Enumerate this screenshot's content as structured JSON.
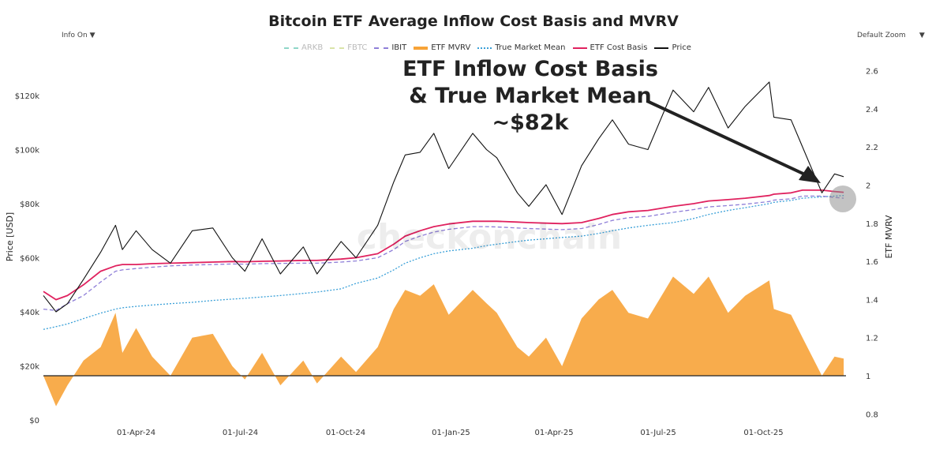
{
  "title": "Bitcoin ETF Average Inflow Cost Basis and MVRV",
  "controls": {
    "info": "Info On",
    "zoom": "Default Zoom",
    "dropdown_icon": "triangle-down"
  },
  "annotation": {
    "lines": [
      "ETF Inflow Cost Basis",
      "& True Market Mean",
      "~$82k"
    ]
  },
  "watermark": "checkonchain",
  "colors": {
    "price": "#111111",
    "cost_basis": "#e0225f",
    "true_market_mean": "#3aa0d8",
    "ibit": "#8f7fd8",
    "mvrv": "#f7a338",
    "arkb": "#8fd6c8",
    "fbtc": "#d9e3a8"
  },
  "chart_data": {
    "type": "line",
    "title": "Bitcoin ETF Average Inflow Cost Basis and MVRV",
    "ylabel": "Price [USD]",
    "y2label": "ETF MVRV",
    "ylim": [
      0,
      130000
    ],
    "y2lim": [
      0.75,
      2.65
    ],
    "yticks": [
      "$0",
      "$20k",
      "$40k",
      "$60k",
      "$80k",
      "$100k",
      "$120k"
    ],
    "yticks_values": [
      0,
      20000,
      40000,
      60000,
      80000,
      100000,
      120000
    ],
    "y2ticks": [
      "0.8",
      "1",
      "1.2",
      "1.4",
      "1.6",
      "1.8",
      "2",
      "2.2",
      "2.4",
      "2.6"
    ],
    "xticks": [
      "01-Apr-24",
      "01-Jul-24",
      "01-Oct-24",
      "01-Jan-25",
      "01-Apr-25",
      "01-Jul-25",
      "01-Oct-25"
    ],
    "xticks_dates": [
      "2024-04-01",
      "2024-07-01",
      "2024-10-01",
      "2025-01-01",
      "2025-04-01",
      "2025-07-01",
      "2025-10-01"
    ],
    "xlim": [
      "2024-01-11",
      "2025-12-12"
    ],
    "grid": false,
    "legend_position": "top",
    "legend": [
      {
        "name": "ARKB",
        "style": "dashed",
        "hidden": true
      },
      {
        "name": "FBTC",
        "style": "dashed",
        "hidden": true
      },
      {
        "name": "IBIT",
        "style": "dashed"
      },
      {
        "name": "ETF MVRV",
        "style": "area"
      },
      {
        "name": "True Market Mean",
        "style": "dotted"
      },
      {
        "name": "ETF Cost Basis",
        "style": "solid"
      },
      {
        "name": "Price",
        "style": "solid"
      }
    ],
    "dates": [
      "2024-01-11",
      "2024-01-22",
      "2024-02-01",
      "2024-02-15",
      "2024-03-01",
      "2024-03-14",
      "2024-03-20",
      "2024-04-01",
      "2024-04-15",
      "2024-05-01",
      "2024-05-20",
      "2024-06-07",
      "2024-06-24",
      "2024-07-05",
      "2024-07-20",
      "2024-08-05",
      "2024-08-25",
      "2024-09-06",
      "2024-09-27",
      "2024-10-10",
      "2024-10-29",
      "2024-11-12",
      "2024-11-22",
      "2024-12-05",
      "2024-12-17",
      "2024-12-30",
      "2025-01-20",
      "2025-02-01",
      "2025-02-10",
      "2025-02-28",
      "2025-03-10",
      "2025-03-25",
      "2025-04-08",
      "2025-04-25",
      "2025-05-10",
      "2025-05-22",
      "2025-06-05",
      "2025-06-22",
      "2025-07-14",
      "2025-08-01",
      "2025-08-14",
      "2025-08-31",
      "2025-09-15",
      "2025-10-06",
      "2025-10-10",
      "2025-10-25",
      "2025-11-04",
      "2025-11-21",
      "2025-12-02",
      "2025-12-10"
    ],
    "series": [
      {
        "name": "Price",
        "axis": "left",
        "values": [
          46000,
          40000,
          43000,
          52000,
          62000,
          72000,
          63000,
          70000,
          63000,
          58000,
          70000,
          71000,
          60000,
          55000,
          67000,
          54000,
          64000,
          54000,
          66000,
          60000,
          72000,
          88000,
          98000,
          99000,
          106000,
          93000,
          106000,
          100000,
          97000,
          84000,
          79000,
          87000,
          76000,
          94000,
          104000,
          111000,
          102000,
          100000,
          122000,
          114000,
          123000,
          108000,
          116000,
          125000,
          112000,
          111000,
          101000,
          84000,
          91000,
          90000
        ]
      },
      {
        "name": "ETF Cost Basis",
        "axis": "left",
        "values": [
          47500,
          44500,
          46000,
          50000,
          55000,
          57000,
          57500,
          57500,
          57800,
          58000,
          58200,
          58400,
          58600,
          58500,
          58700,
          58800,
          59000,
          59000,
          59500,
          60000,
          61500,
          65000,
          68000,
          70000,
          71500,
          72500,
          73500,
          73500,
          73500,
          73200,
          73000,
          72800,
          72600,
          73000,
          74500,
          76000,
          77000,
          77500,
          79000,
          80000,
          81000,
          81500,
          82000,
          83000,
          83500,
          84000,
          85000,
          85000,
          84500,
          84200
        ]
      },
      {
        "name": "IBIT",
        "axis": "left",
        "values": [
          41000,
          40500,
          43000,
          46000,
          51000,
          55000,
          55500,
          56000,
          56500,
          57000,
          57300,
          57500,
          57700,
          57600,
          57800,
          57900,
          58000,
          58000,
          58400,
          58800,
          60000,
          63000,
          66000,
          68000,
          69500,
          70500,
          71500,
          71500,
          71400,
          71000,
          70800,
          70600,
          70400,
          70800,
          72300,
          73800,
          74800,
          75300,
          76800,
          77800,
          78800,
          79300,
          79800,
          80800,
          81300,
          81800,
          82800,
          82800,
          82300,
          82000
        ]
      },
      {
        "name": "True Market Mean",
        "axis": "left",
        "values": [
          33500,
          34500,
          35500,
          37500,
          39500,
          41000,
          41500,
          42000,
          42500,
          43000,
          43500,
          44200,
          44700,
          45000,
          45500,
          46000,
          46800,
          47300,
          48500,
          50500,
          52500,
          55500,
          58000,
          60000,
          61500,
          62500,
          63500,
          64500,
          65000,
          66000,
          66500,
          67000,
          67500,
          68000,
          69000,
          70000,
          71000,
          72000,
          73000,
          74500,
          76000,
          77500,
          78500,
          80000,
          80500,
          81200,
          82000,
          82500,
          82800,
          83000
        ]
      },
      {
        "name": "ETF MVRV",
        "axis": "right",
        "values": [
          1.0,
          0.84,
          0.95,
          1.08,
          1.15,
          1.33,
          1.12,
          1.25,
          1.1,
          1.0,
          1.2,
          1.22,
          1.05,
          0.98,
          1.12,
          0.95,
          1.08,
          0.96,
          1.1,
          1.02,
          1.15,
          1.35,
          1.45,
          1.42,
          1.48,
          1.32,
          1.45,
          1.38,
          1.33,
          1.15,
          1.1,
          1.2,
          1.05,
          1.3,
          1.4,
          1.45,
          1.33,
          1.3,
          1.52,
          1.43,
          1.52,
          1.33,
          1.42,
          1.5,
          1.35,
          1.32,
          1.2,
          1.0,
          1.1,
          1.09
        ]
      }
    ]
  }
}
